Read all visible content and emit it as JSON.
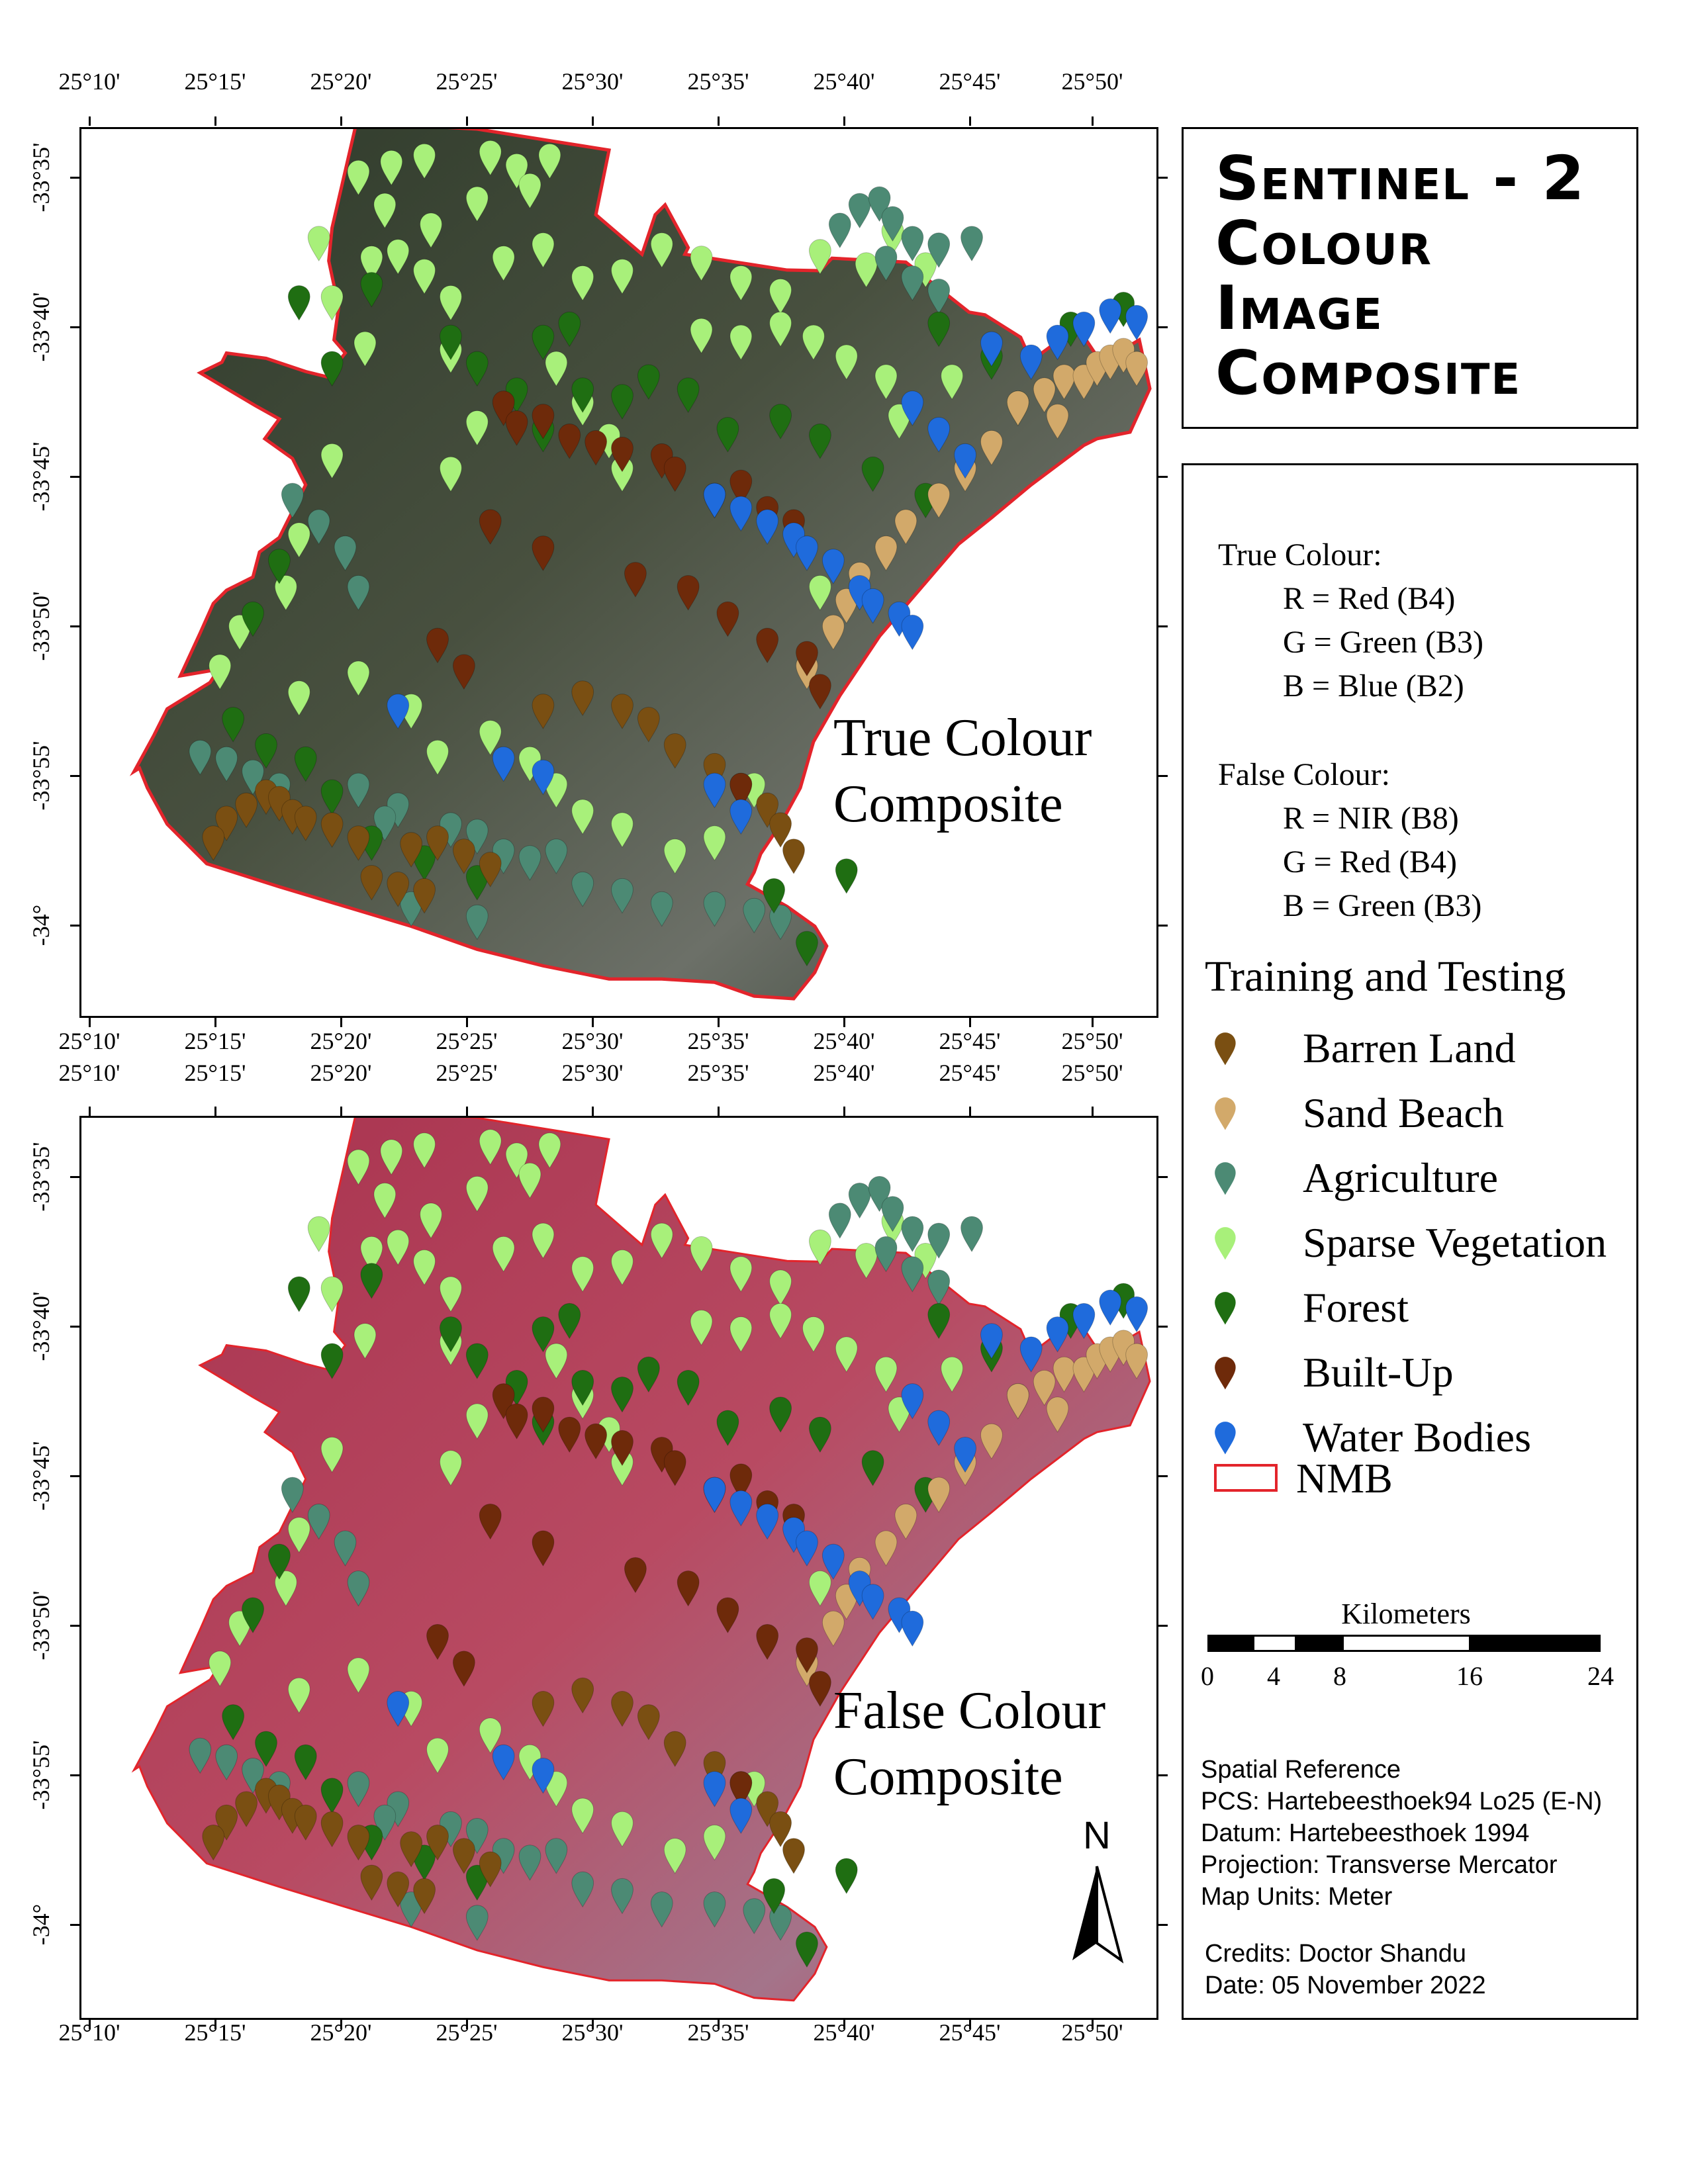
{
  "title": {
    "lines": [
      "Sentinel - 2",
      "Colour",
      "Image",
      "Composite"
    ]
  },
  "maps": {
    "top": {
      "overlay_label_lines": [
        "True Colour",
        "Composite"
      ]
    },
    "bottom": {
      "overlay_label_lines": [
        "False Colour",
        "Composite"
      ]
    }
  },
  "graticule": {
    "lon_labels": [
      "25°10'",
      "25°15'",
      "25°20'",
      "25°25'",
      "25°30'",
      "25°35'",
      "25°40'",
      "25°45'",
      "25°50'"
    ],
    "lat_labels": [
      "-33°35'",
      "-33°40'",
      "-33°45'",
      "-33°50'",
      "-33°55'",
      "-34°"
    ]
  },
  "bands": {
    "true_colour": {
      "heading": "True Colour:",
      "lines": [
        "R = Red (B4)",
        "G = Green (B3)",
        "B = Blue (B2)"
      ]
    },
    "false_colour": {
      "heading": "False Colour:",
      "lines": [
        "R = NIR (B8)",
        "G = Red (B4)",
        "B = Green (B3)"
      ]
    }
  },
  "legend": {
    "title": "Training and Testing",
    "classes": [
      {
        "label": "Barren Land",
        "color": "#7a4f12"
      },
      {
        "label": "Sand Beach",
        "color": "#d2a96a"
      },
      {
        "label": "Agriculture",
        "color": "#4c8a74"
      },
      {
        "label": "Sparse Vegetation",
        "color": "#a8f07a"
      },
      {
        "label": "Forest",
        "color": "#1f6e12"
      },
      {
        "label": "Built-Up",
        "color": "#6e2a0a"
      },
      {
        "label": "Water Bodies",
        "color": "#1f6bdc"
      }
    ],
    "boundary": {
      "label": "NMB",
      "color": "#e3242b"
    }
  },
  "scale_bar": {
    "title": "Kilometers",
    "ticks": [
      "0",
      "4",
      "8",
      "16",
      "24"
    ]
  },
  "spatial_reference": {
    "lines": [
      "Spatial Reference",
      "PCS: Hartebeesthoek94 Lo25 (E-N)",
      "Datum: Hartebeesthoek 1994",
      "Projection: Transverse Mercator",
      "Map Units: Meter"
    ]
  },
  "credits": {
    "author": "Credits: Doctor Shandu",
    "date": "Date: 05 November 2022"
  },
  "north_arrow": {
    "letter": "N"
  },
  "colors": {
    "true_colour_land": "#3d4535",
    "false_colour_land": "#b23a55",
    "boundary": "#e3242b"
  }
}
